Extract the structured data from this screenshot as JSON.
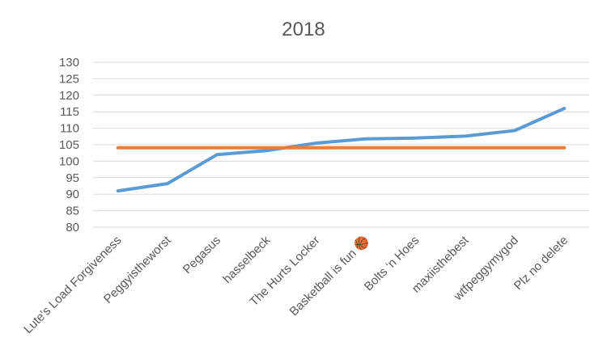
{
  "chart_data": {
    "type": "line",
    "title": "2018",
    "xlabel": "",
    "ylabel": "",
    "categories": [
      "Lute's Load Forgiveness",
      "Peggyistheworst",
      "Pegasus",
      "hasselbeck",
      "The Hurts Locker",
      "Basketball is fun 🏀",
      "Bolts ‘n Hoes",
      "maxiisthebest",
      "wtfpeggymygod",
      "Plz no delete"
    ],
    "series": [
      {
        "values": [
          91,
          93.2,
          102,
          103.2,
          105.5,
          106.8,
          107,
          107.6,
          109.3,
          116
        ],
        "color": "#5b9bd5"
      },
      {
        "values": [
          104.1,
          104.1,
          104.1,
          104.1,
          104.1,
          104.1,
          104.1,
          104.1,
          104.1,
          104.1
        ],
        "color": "#ed7d31"
      }
    ],
    "ylim": [
      80,
      130
    ],
    "yticks": [
      80,
      85,
      90,
      95,
      100,
      105,
      110,
      115,
      120,
      125,
      130
    ],
    "grid": true,
    "legend": "none"
  }
}
